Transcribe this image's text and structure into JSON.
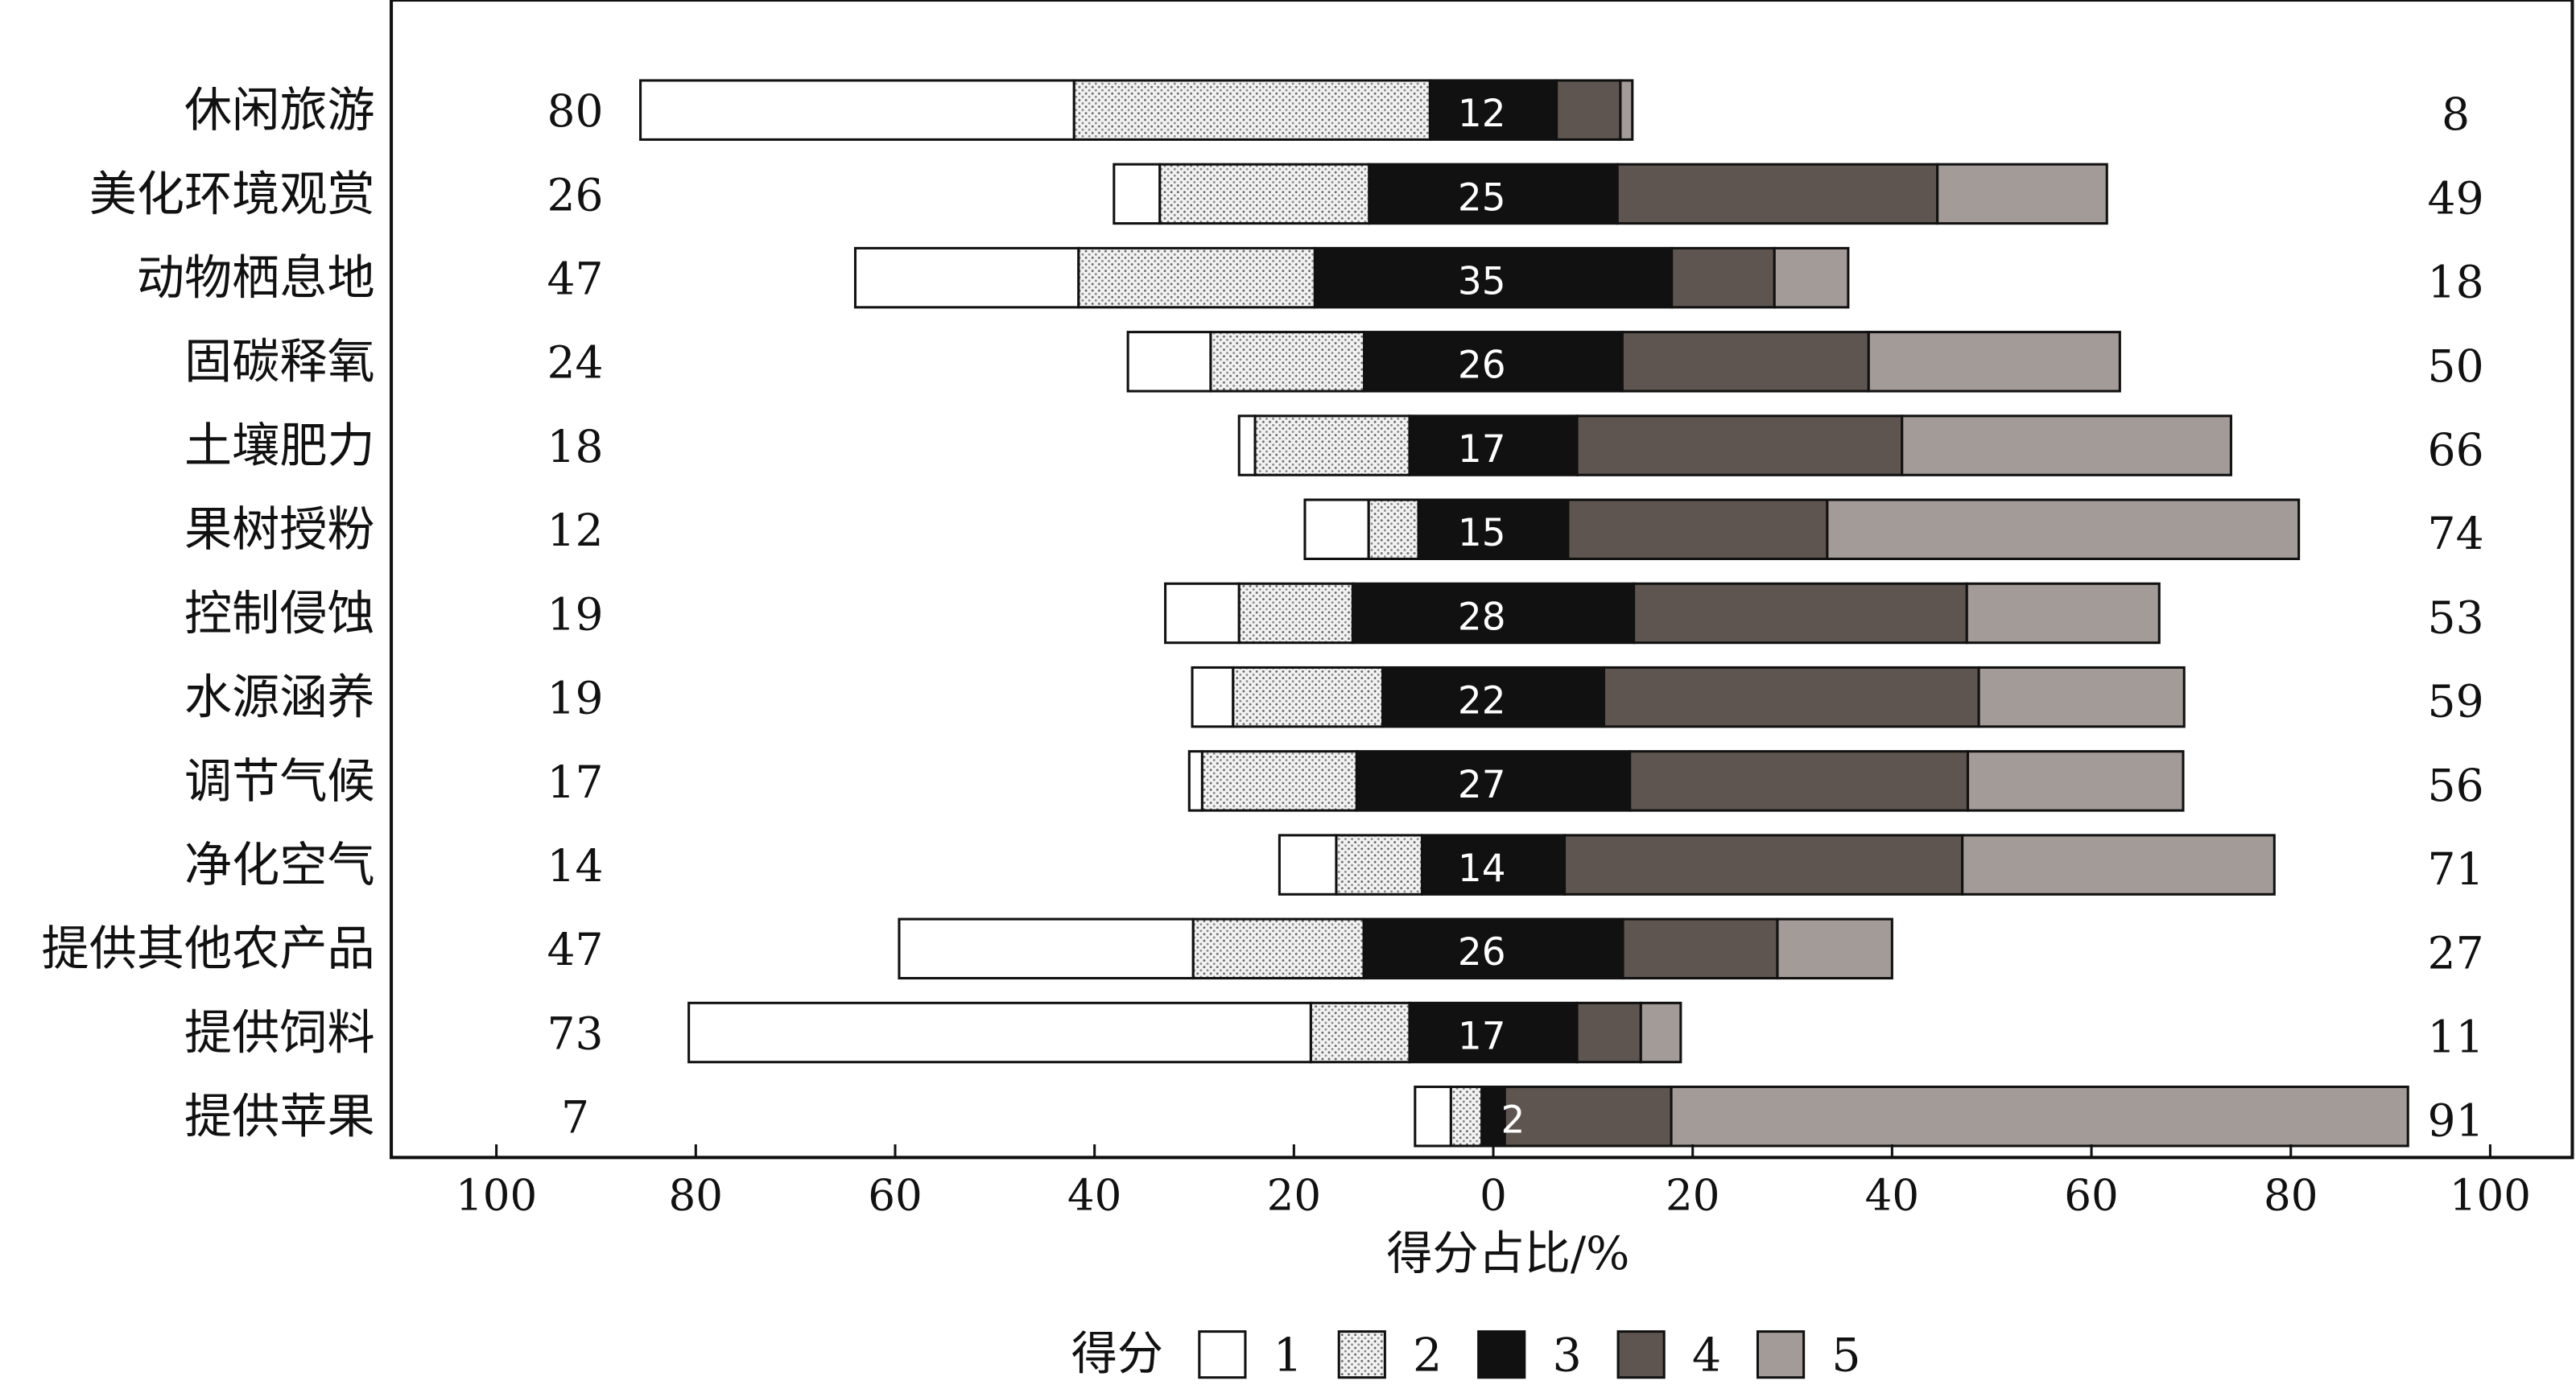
{
  "chart_data": {
    "type": "bar",
    "subtype": "diverging-stacked-horizontal",
    "categories": [
      "休闲旅游",
      "美化环境观赏",
      "动物栖息地",
      "固碳释氧",
      "土壤肥力",
      "果树授粉",
      "控制侵蚀",
      "水源涵养",
      "调节气候",
      "净化空气",
      "提供其他农产品",
      "提供饲料",
      "提供苹果"
    ],
    "series": [
      {
        "name": "1",
        "color": "#ffffff",
        "values": [
          43.5,
          4.6,
          22.4,
          8.3,
          1.6,
          6.4,
          7.4,
          4.1,
          1.3,
          5.7,
          29.5,
          62.4,
          3.6
        ]
      },
      {
        "name": "2",
        "color": "#dcdcdc",
        "pattern": "dotted",
        "values": [
          35.7,
          21,
          23.7,
          15.4,
          15.5,
          5,
          11.4,
          15,
          15.5,
          8.6,
          17.1,
          9.9,
          3.1
        ]
      },
      {
        "name": "3",
        "color": "#111111",
        "values": [
          12.7,
          24.9,
          35.8,
          25.9,
          16.8,
          15,
          28.2,
          22.2,
          27.4,
          14.3,
          26,
          16.8,
          2.3
        ]
      },
      {
        "name": "4",
        "color": "#5e5550",
        "values": [
          6.4,
          32.1,
          10.3,
          24.7,
          32.6,
          26,
          33.4,
          37.6,
          33.9,
          39.9,
          15.5,
          6.4,
          16.7
        ]
      },
      {
        "name": "5",
        "color": "#a39b98",
        "values": [
          1.2,
          17,
          7.4,
          25.2,
          33,
          47.3,
          19.3,
          20.6,
          21.6,
          31.3,
          11.5,
          4,
          73.9
        ]
      }
    ],
    "left_labels": [
      "80",
      "26",
      "47",
      "24",
      "18",
      "12",
      "19",
      "19",
      "17",
      "14",
      "47",
      "73",
      "7"
    ],
    "neutral_labels": [
      "12",
      "25",
      "35",
      "26",
      "17",
      "15",
      "28",
      "22",
      "27",
      "14",
      "26",
      "17",
      "2"
    ],
    "right_labels": [
      "8",
      "49",
      "18",
      "50",
      "66",
      "74",
      "53",
      "59",
      "56",
      "71",
      "27",
      "11",
      "91"
    ],
    "xlabel": "得分占比/%",
    "xlim": [
      -100,
      100
    ],
    "xticks": [
      -100,
      -80,
      -60,
      -40,
      -20,
      0,
      20,
      40,
      60,
      80,
      100
    ],
    "xtick_labels": [
      "100",
      "80",
      "60",
      "40",
      "20",
      "0",
      "20",
      "40",
      "60",
      "80",
      "100"
    ],
    "legend_title": "得分",
    "legend_placement": "bottom-center",
    "grid": false
  }
}
